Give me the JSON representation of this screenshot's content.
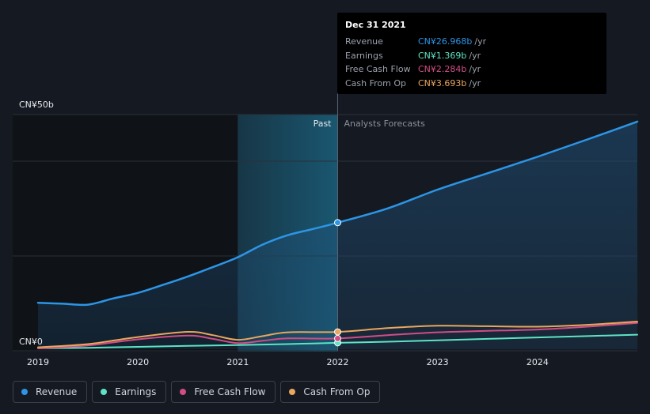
{
  "chart_data": {
    "type": "line",
    "x_ticks": [
      "2019",
      "2020",
      "2021",
      "2022",
      "2023",
      "2024"
    ],
    "y_ticks": [
      "CN¥0",
      "CN¥50b"
    ],
    "ylim": [
      0,
      50
    ],
    "xlim": [
      2019.0,
      2025.0
    ],
    "divider_x": 2022.0,
    "past_shade_start": 2021.0,
    "region_labels": {
      "past": "Past",
      "forecast": "Analysts Forecasts"
    },
    "series": [
      {
        "name": "Revenue",
        "color": "#2d95e6",
        "area": true,
        "points": [
          [
            2019.0,
            9.9
          ],
          [
            2019.25,
            9.7
          ],
          [
            2019.5,
            9.5
          ],
          [
            2019.75,
            10.8
          ],
          [
            2020.0,
            12.0
          ],
          [
            2020.25,
            13.7
          ],
          [
            2020.5,
            15.5
          ],
          [
            2020.75,
            17.5
          ],
          [
            2021.0,
            19.6
          ],
          [
            2021.25,
            22.3
          ],
          [
            2021.5,
            24.3
          ],
          [
            2021.75,
            25.6
          ],
          [
            2022.0,
            26.968
          ],
          [
            2022.5,
            30.0
          ],
          [
            2023.0,
            34.0
          ],
          [
            2023.5,
            37.5
          ],
          [
            2024.0,
            41.0
          ],
          [
            2024.5,
            44.7
          ],
          [
            2025.0,
            48.5
          ]
        ]
      },
      {
        "name": "Earnings",
        "color": "#5fe3c4",
        "area": false,
        "points": [
          [
            2019.0,
            0.2
          ],
          [
            2019.5,
            0.3
          ],
          [
            2020.0,
            0.5
          ],
          [
            2020.5,
            0.7
          ],
          [
            2021.0,
            0.9
          ],
          [
            2021.5,
            1.1
          ],
          [
            2022.0,
            1.369
          ],
          [
            2022.5,
            1.6
          ],
          [
            2023.0,
            1.9
          ],
          [
            2023.5,
            2.2
          ],
          [
            2024.0,
            2.5
          ],
          [
            2024.5,
            2.8
          ],
          [
            2025.0,
            3.1
          ]
        ]
      },
      {
        "name": "Free Cash Flow",
        "color": "#d04d85",
        "area": false,
        "points": [
          [
            2019.0,
            0.2
          ],
          [
            2019.5,
            0.8
          ],
          [
            2020.0,
            2.1
          ],
          [
            2020.5,
            2.9
          ],
          [
            2020.75,
            2.2
          ],
          [
            2021.0,
            1.3
          ],
          [
            2021.25,
            1.8
          ],
          [
            2021.5,
            2.3
          ],
          [
            2022.0,
            2.284
          ],
          [
            2022.5,
            3.0
          ],
          [
            2023.0,
            3.6
          ],
          [
            2023.5,
            3.9
          ],
          [
            2024.0,
            4.2
          ],
          [
            2024.5,
            4.8
          ],
          [
            2025.0,
            5.6
          ]
        ]
      },
      {
        "name": "Cash From Op",
        "color": "#eaa75e",
        "area": false,
        "points": [
          [
            2019.0,
            0.4
          ],
          [
            2019.5,
            1.1
          ],
          [
            2020.0,
            2.6
          ],
          [
            2020.5,
            3.7
          ],
          [
            2020.75,
            3.0
          ],
          [
            2021.0,
            2.0
          ],
          [
            2021.25,
            2.8
          ],
          [
            2021.5,
            3.6
          ],
          [
            2022.0,
            3.693
          ],
          [
            2022.5,
            4.5
          ],
          [
            2023.0,
            5.0
          ],
          [
            2023.5,
            4.9
          ],
          [
            2024.0,
            4.8
          ],
          [
            2024.5,
            5.2
          ],
          [
            2025.0,
            5.9
          ]
        ]
      }
    ]
  },
  "tooltip": {
    "date": "Dec 31 2021",
    "rows": [
      {
        "label": "Revenue",
        "value": "CN¥26.968b",
        "unit": "/yr",
        "color": "#2d95e6"
      },
      {
        "label": "Earnings",
        "value": "CN¥1.369b",
        "unit": "/yr",
        "color": "#5fe3c4"
      },
      {
        "label": "Free Cash Flow",
        "value": "CN¥2.284b",
        "unit": "/yr",
        "color": "#d04d85"
      },
      {
        "label": "Cash From Op",
        "value": "CN¥3.693b",
        "unit": "/yr",
        "color": "#eaa75e"
      }
    ]
  },
  "legend": [
    {
      "label": "Revenue",
      "color": "#2d95e6"
    },
    {
      "label": "Earnings",
      "color": "#5fe3c4"
    },
    {
      "label": "Free Cash Flow",
      "color": "#d04d85"
    },
    {
      "label": "Cash From Op",
      "color": "#eaa75e"
    }
  ]
}
